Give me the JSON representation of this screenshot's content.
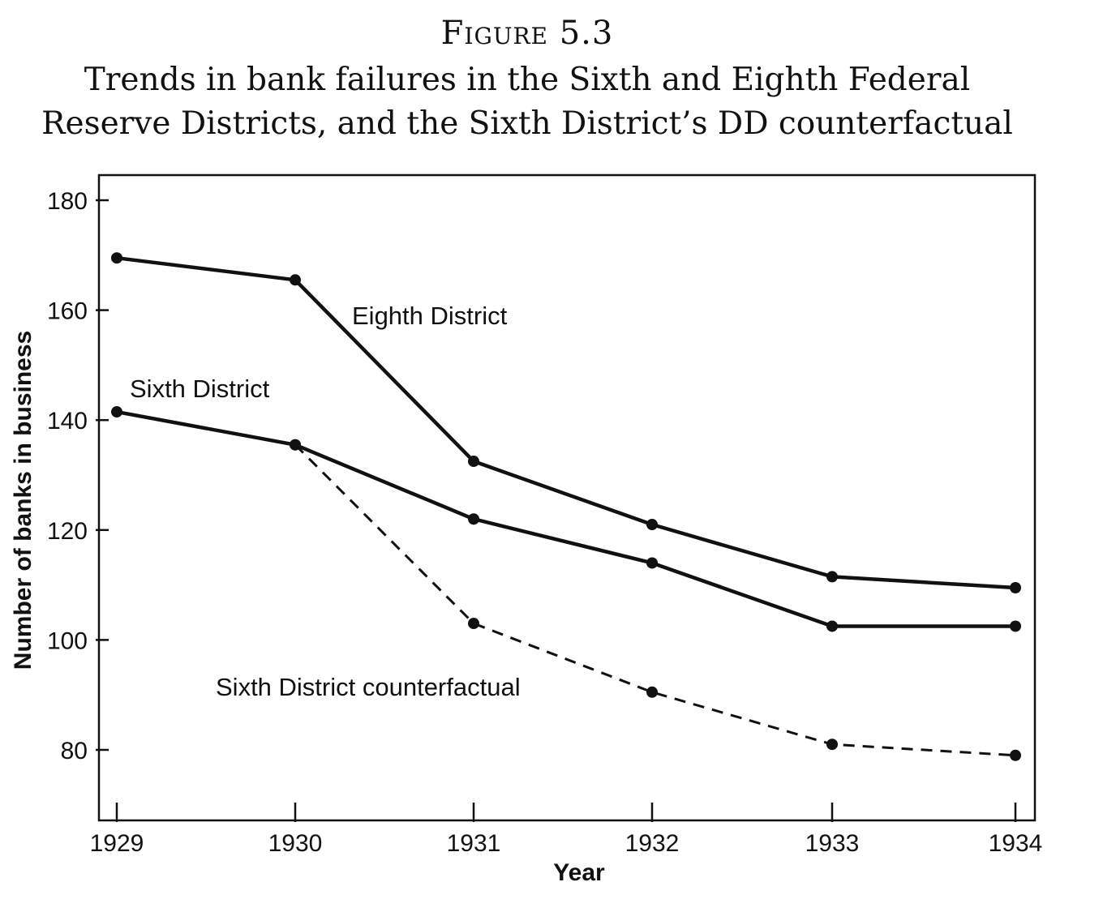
{
  "figure": {
    "label": "Figure 5.3",
    "title": "Trends in bank failures in the Sixth and Eighth Federal Reserve Districts, and the Sixth District’s DD counterfactual"
  },
  "chart_data": {
    "type": "line",
    "x": [
      1929,
      1930,
      1931,
      1932,
      1933,
      1934
    ],
    "xlabel": "Year",
    "ylabel": "Number of banks in business",
    "xticks": [
      "1929",
      "1930",
      "1931",
      "1932",
      "1933",
      "1934"
    ],
    "yticks": [
      "80",
      "100",
      "120",
      "140",
      "160",
      "180"
    ],
    "ylim": [
      67,
      184
    ],
    "grid": false,
    "legend": "none (direct labels on lines)",
    "series": [
      {
        "name": "Eighth District",
        "style": "solid",
        "values": [
          169.5,
          165.5,
          132.5,
          121,
          111.5,
          109.5
        ]
      },
      {
        "name": "Sixth District",
        "style": "solid",
        "values": [
          141.5,
          135.5,
          122,
          114,
          102.5,
          102.5
        ]
      },
      {
        "name": "Sixth District counterfactual",
        "style": "dashed",
        "values": [
          null,
          135.5,
          103,
          90.5,
          81,
          79
        ]
      }
    ]
  }
}
